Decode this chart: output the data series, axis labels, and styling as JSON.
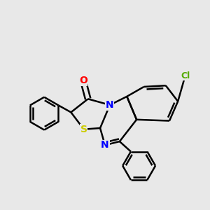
{
  "background_color": "#e8e8e8",
  "bond_color": "#000000",
  "bond_width": 1.8,
  "atom_colors": {
    "N": "#0000ff",
    "O": "#ff0000",
    "S": "#cccc00",
    "Cl": "#55aa00",
    "C": "#000000"
  },
  "font_size": 10,
  "font_size_cl": 9
}
